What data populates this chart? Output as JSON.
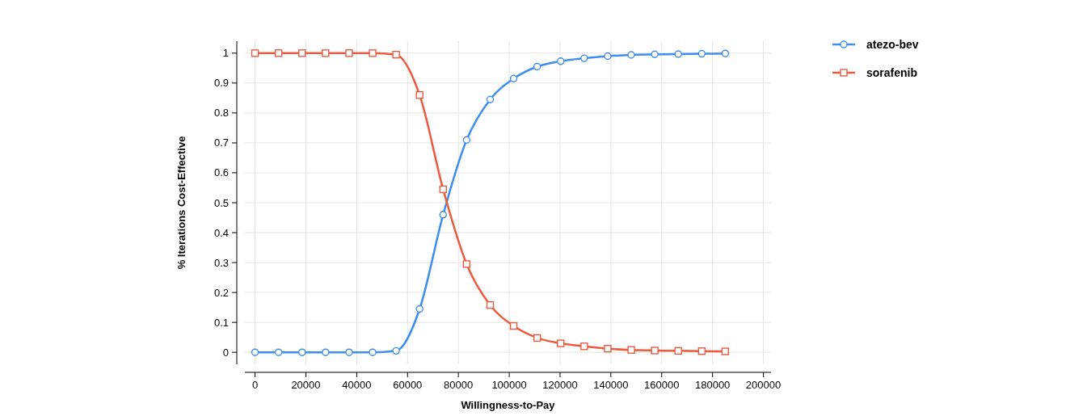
{
  "chart_data": {
    "type": "line",
    "xlabel": "Willingness-to-Pay",
    "ylabel": "% Iterations Cost-Effective",
    "x": [
      0,
      9250,
      18500,
      27750,
      37000,
      46250,
      55500,
      64750,
      74000,
      83250,
      92500,
      101750,
      111000,
      120250,
      129500,
      138750,
      148000,
      157250,
      166500,
      175750,
      185000
    ],
    "series": [
      {
        "name": "atezo-bev",
        "color": "#3d8ef0",
        "marker": "circle",
        "values": [
          0,
          0,
          0,
          0,
          0,
          0,
          0.005,
          0.145,
          0.46,
          0.71,
          0.845,
          0.915,
          0.955,
          0.973,
          0.983,
          0.99,
          0.994,
          0.996,
          0.997,
          0.998,
          0.999
        ]
      },
      {
        "name": "sorafenib",
        "color": "#ee5a3f",
        "marker": "square",
        "values": [
          1,
          1,
          1,
          1,
          1,
          1,
          0.995,
          0.86,
          0.545,
          0.295,
          0.158,
          0.088,
          0.048,
          0.03,
          0.02,
          0.012,
          0.008,
          0.006,
          0.005,
          0.004,
          0.003
        ]
      }
    ],
    "xlim": [
      -4000,
      203000
    ],
    "ylim": [
      -0.04,
      1.04
    ],
    "xticks": [
      0,
      20000,
      40000,
      60000,
      80000,
      100000,
      120000,
      140000,
      160000,
      180000,
      200000
    ],
    "yticks": [
      0,
      0.1,
      0.2,
      0.3,
      0.4,
      0.5,
      0.6,
      0.7,
      0.8,
      0.9,
      1
    ],
    "grid": true,
    "legend": "right",
    "line_style": "solid"
  }
}
